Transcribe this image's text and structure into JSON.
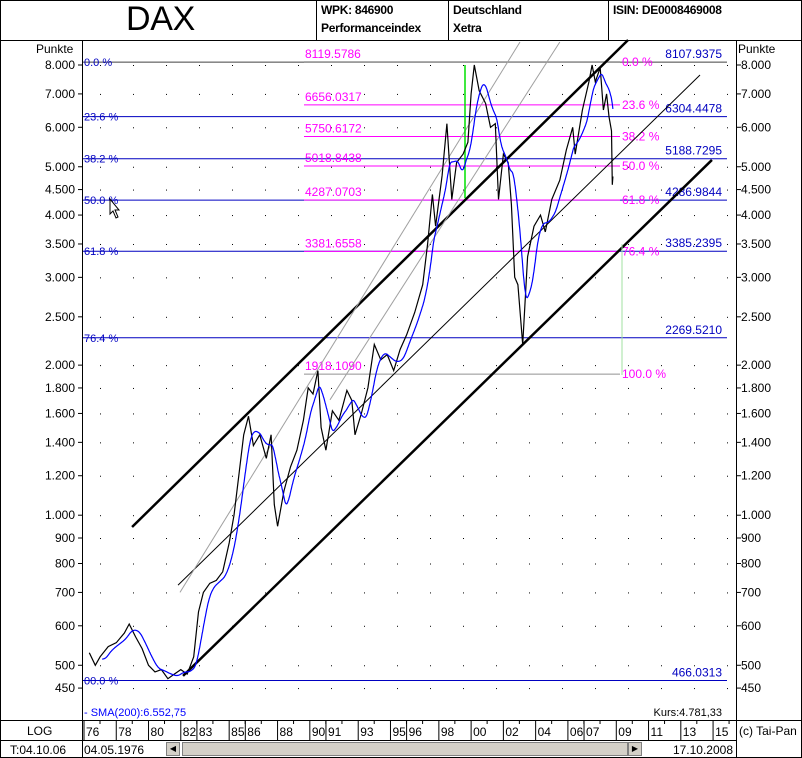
{
  "header": {
    "title": "DAX",
    "wpk": "WPK: 846900",
    "index_type": "Performanceindex",
    "country": "Deutschland",
    "exchange": "Xetra",
    "isin": "ISIN: DE0008469008"
  },
  "axis": {
    "unit_left": "Punkte",
    "unit_right": "Punkte",
    "scale": "LOG"
  },
  "chart_data": {
    "type": "line",
    "title": "DAX",
    "ylabel": "Punkte",
    "yscale": "log",
    "ylim": [
      450,
      8000
    ],
    "xlim": [
      1976,
      2015
    ],
    "grid": "dotted",
    "y_ticks": [
      {
        "value": 8000,
        "label": "8.000"
      },
      {
        "value": 7000,
        "label": "7.000"
      },
      {
        "value": 6000,
        "label": "6.000"
      },
      {
        "value": 5000,
        "label": "5.000"
      },
      {
        "value": 4500,
        "label": "4.500"
      },
      {
        "value": 4000,
        "label": "4.000"
      },
      {
        "value": 3500,
        "label": "3.500"
      },
      {
        "value": 3000,
        "label": "3.000"
      },
      {
        "value": 2500,
        "label": "2.500"
      },
      {
        "value": 2000,
        "label": "2.000"
      },
      {
        "value": 1800,
        "label": "1.800"
      },
      {
        "value": 1600,
        "label": "1.600"
      },
      {
        "value": 1400,
        "label": "1.400"
      },
      {
        "value": 1200,
        "label": "1.200"
      },
      {
        "value": 1000,
        "label": "1.000"
      },
      {
        "value": 900,
        "label": "900"
      },
      {
        "value": 800,
        "label": "800"
      },
      {
        "value": 700,
        "label": "700"
      },
      {
        "value": 600,
        "label": "600"
      },
      {
        "value": 500,
        "label": "500"
      },
      {
        "value": 450,
        "label": "450"
      }
    ],
    "x_ticks": [
      {
        "year": 1976,
        "label": "76"
      },
      {
        "year": 1978,
        "label": "78"
      },
      {
        "year": 1980,
        "label": "80"
      },
      {
        "year": 1982,
        "label": "82"
      },
      {
        "year": 1983,
        "label": "83"
      },
      {
        "year": 1985,
        "label": "85"
      },
      {
        "year": 1986,
        "label": "86"
      },
      {
        "year": 1988,
        "label": "88"
      },
      {
        "year": 1990,
        "label": "90"
      },
      {
        "year": 1991,
        "label": "91"
      },
      {
        "year": 1993,
        "label": "93"
      },
      {
        "year": 1995,
        "label": "95"
      },
      {
        "year": 1996,
        "label": "96"
      },
      {
        "year": 1998,
        "label": "98"
      },
      {
        "year": 2000,
        "label": "00"
      },
      {
        "year": 2002,
        "label": "02"
      },
      {
        "year": 2004,
        "label": "04"
      },
      {
        "year": 2006,
        "label": "06"
      },
      {
        "year": 2007,
        "label": "07"
      },
      {
        "year": 2009,
        "label": "09"
      },
      {
        "year": 2011,
        "label": "11"
      },
      {
        "year": 2013,
        "label": "13"
      },
      {
        "year": 2015,
        "label": "15"
      }
    ],
    "series": [
      {
        "name": "Kurs",
        "color": "#000000",
        "points": [
          [
            1976.33,
            530
          ],
          [
            1976.7,
            500
          ],
          [
            1977.0,
            520
          ],
          [
            1977.5,
            545
          ],
          [
            1978.0,
            555
          ],
          [
            1978.5,
            580
          ],
          [
            1978.8,
            605
          ],
          [
            1979.2,
            570
          ],
          [
            1979.6,
            540
          ],
          [
            1980.0,
            500
          ],
          [
            1980.4,
            485
          ],
          [
            1980.8,
            490
          ],
          [
            1981.2,
            470
          ],
          [
            1981.6,
            480
          ],
          [
            1982.0,
            490
          ],
          [
            1982.4,
            480
          ],
          [
            1982.8,
            520
          ],
          [
            1983.1,
            640
          ],
          [
            1983.4,
            700
          ],
          [
            1983.8,
            730
          ],
          [
            1984.2,
            740
          ],
          [
            1984.6,
            770
          ],
          [
            1985.0,
            880
          ],
          [
            1985.3,
            1000
          ],
          [
            1985.6,
            1200
          ],
          [
            1985.9,
            1450
          ],
          [
            1986.2,
            1580
          ],
          [
            1986.5,
            1380
          ],
          [
            1986.9,
            1450
          ],
          [
            1987.3,
            1300
          ],
          [
            1987.6,
            1450
          ],
          [
            1987.8,
            1050
          ],
          [
            1988.0,
            950
          ],
          [
            1988.4,
            1120
          ],
          [
            1988.8,
            1250
          ],
          [
            1989.2,
            1350
          ],
          [
            1989.6,
            1550
          ],
          [
            1989.9,
            1800
          ],
          [
            1990.2,
            1750
          ],
          [
            1990.5,
            1950
          ],
          [
            1990.7,
            1500
          ],
          [
            1991.0,
            1350
          ],
          [
            1991.4,
            1620
          ],
          [
            1991.8,
            1550
          ],
          [
            1992.3,
            1780
          ],
          [
            1992.6,
            1700
          ],
          [
            1992.8,
            1450
          ],
          [
            1993.2,
            1600
          ],
          [
            1993.6,
            1800
          ],
          [
            1994.0,
            2200
          ],
          [
            1994.4,
            2050
          ],
          [
            1994.8,
            2100
          ],
          [
            1995.2,
            1950
          ],
          [
            1995.6,
            2150
          ],
          [
            1996.0,
            2300
          ],
          [
            1996.5,
            2550
          ],
          [
            1997.0,
            2900
          ],
          [
            1997.3,
            3500
          ],
          [
            1997.6,
            4400
          ],
          [
            1997.8,
            3800
          ],
          [
            1998.2,
            4800
          ],
          [
            1998.5,
            6100
          ],
          [
            1998.8,
            4300
          ],
          [
            1999.1,
            5100
          ],
          [
            1999.5,
            5300
          ],
          [
            1999.8,
            5600
          ],
          [
            2000.0,
            7000
          ],
          [
            2000.2,
            8000
          ],
          [
            2000.5,
            7100
          ],
          [
            2000.9,
            6700
          ],
          [
            2001.2,
            6000
          ],
          [
            2001.5,
            6100
          ],
          [
            2001.7,
            4300
          ],
          [
            2002.0,
            5300
          ],
          [
            2002.3,
            5100
          ],
          [
            2002.5,
            4200
          ],
          [
            2002.7,
            3000
          ],
          [
            2002.9,
            2900
          ],
          [
            2003.2,
            2200
          ],
          [
            2003.5,
            3300
          ],
          [
            2003.9,
            3800
          ],
          [
            2004.3,
            4000
          ],
          [
            2004.6,
            3700
          ],
          [
            2005.0,
            4300
          ],
          [
            2005.5,
            4700
          ],
          [
            2005.9,
            5400
          ],
          [
            2006.3,
            6000
          ],
          [
            2006.45,
            5300
          ],
          [
            2006.9,
            6500
          ],
          [
            2007.3,
            7400
          ],
          [
            2007.5,
            8000
          ],
          [
            2007.7,
            7400
          ],
          [
            2008.0,
            7900
          ],
          [
            2008.2,
            6500
          ],
          [
            2008.4,
            7000
          ],
          [
            2008.55,
            6300
          ],
          [
            2008.7,
            5900
          ],
          [
            2008.75,
            4600
          ],
          [
            2008.79,
            4781
          ]
        ]
      },
      {
        "name": "SMA(200)",
        "color": "#0000ff"
      }
    ],
    "sma_label": "- SMA(200):6.552,75",
    "last_price_label": "Kurs:4.781,33",
    "fibonacci_long": {
      "color": "#0000c0",
      "levels": [
        {
          "pct": "0.0 %",
          "value": 8107.9375,
          "label": "8107.9375"
        },
        {
          "pct": "23.6 %",
          "value": 6304.4478,
          "label": "6304.4478"
        },
        {
          "pct": "38.2 %",
          "value": 5188.7295,
          "label": "5188.7295"
        },
        {
          "pct": "50.0 %",
          "value": 4286.9844,
          "label": "4286.9844"
        },
        {
          "pct": "61.8 %",
          "value": 3385.2395,
          "label": "3385.2395"
        },
        {
          "pct": "76.4 %",
          "value": 2269.521,
          "label": "2269.5210"
        },
        {
          "pct": "00.0 %",
          "value": 466.0313,
          "label": "466.0313"
        }
      ]
    },
    "fibonacci_short": {
      "color": "#ff00ff",
      "levels": [
        {
          "pct": "0.0 %",
          "value": 8119.5786,
          "label": "8119.5786"
        },
        {
          "pct": "23.6 %",
          "value": 6656.0317,
          "label": "6656.0317"
        },
        {
          "pct": "38.2 %",
          "value": 5750.6172,
          "label": "5750.6172"
        },
        {
          "pct": "50.0 %",
          "value": 5018.8438,
          "label": "5018.8438"
        },
        {
          "pct": "61.8 %",
          "value": 4287.0703,
          "label": "4287.0703"
        },
        {
          "pct": "76.4 %",
          "value": 3381.6558,
          "label": "3381.6558"
        },
        {
          "pct": "100.0 %",
          "value": 1918.109,
          "label": "1918.1090"
        }
      ]
    },
    "trend_lines": [
      {
        "kind": "channel-upper",
        "from": [
          1978.98,
          947
        ],
        "to": [
          2009.73,
          8979
        ],
        "color": "#000000",
        "weight": "thick"
      },
      {
        "kind": "channel-lower",
        "from": [
          1982.14,
          476
        ],
        "to": [
          2014.93,
          5160
        ],
        "color": "#000000",
        "weight": "thick"
      },
      {
        "kind": "channel-mid",
        "from": [
          1981.83,
          724
        ],
        "to": [
          2014.19,
          7640
        ],
        "color": "#000000",
        "weight": "thin"
      },
      {
        "kind": "helper",
        "from": [
          1981.95,
          700
        ],
        "to": [
          2003.03,
          8897
        ],
        "color": "#a0a0a0",
        "weight": "thin"
      },
      {
        "kind": "helper",
        "from": [
          1991.25,
          1704
        ],
        "to": [
          2005.5,
          8897
        ],
        "color": "#a0a0a0",
        "weight": "thin"
      }
    ]
  },
  "footer": {
    "scale_mode": "LOG",
    "timestamp": "T:04.10.06",
    "start_date": "04.05.1976",
    "end_date": "17.10.2008",
    "copyright": "(c) Tai-Pan"
  }
}
